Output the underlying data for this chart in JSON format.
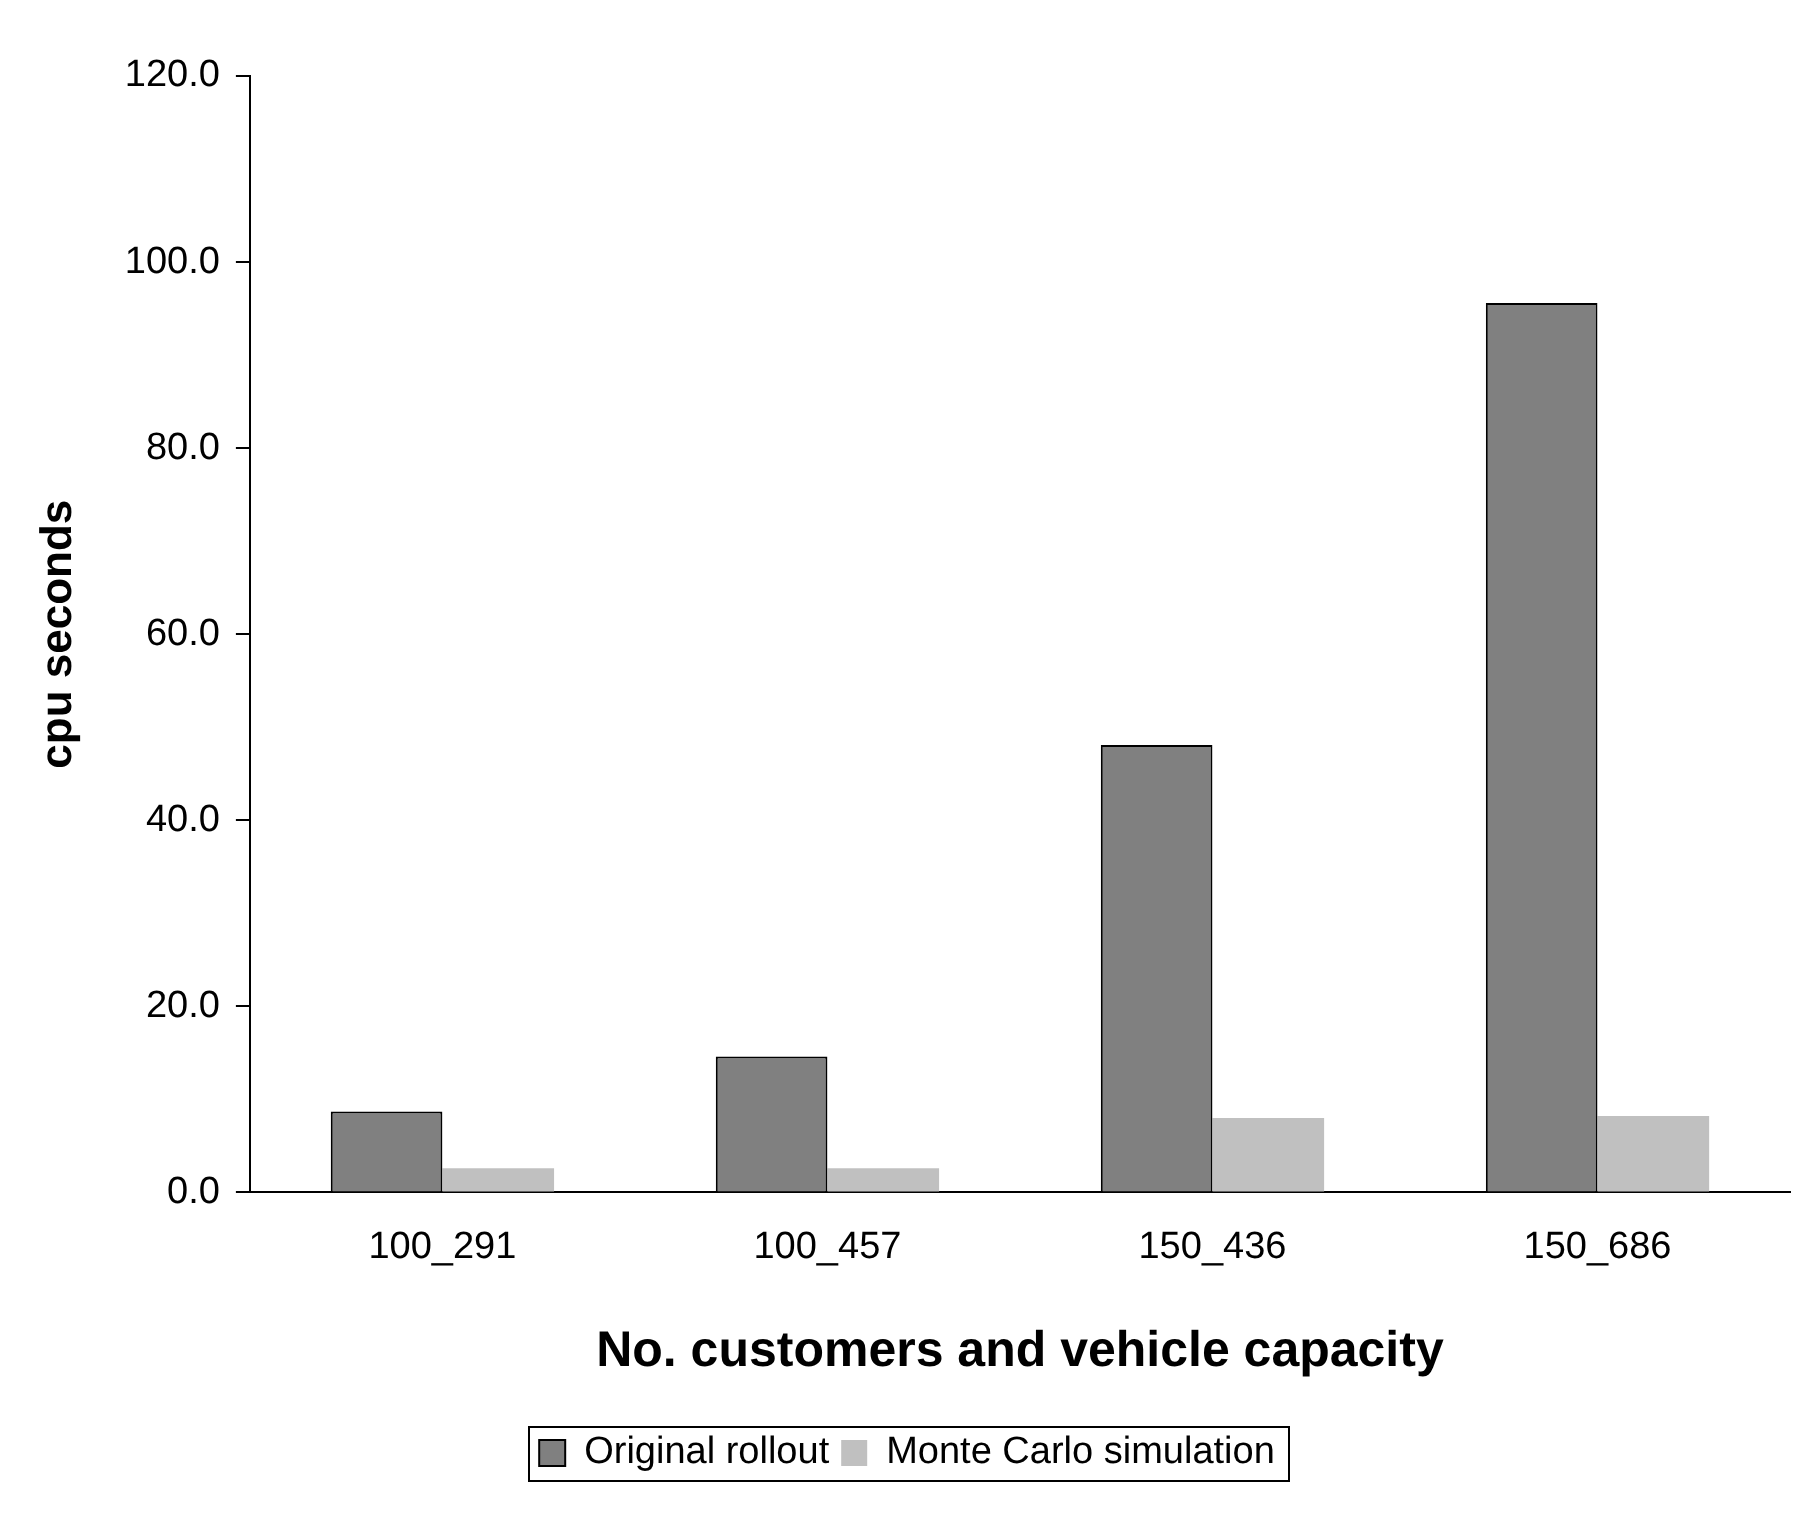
{
  "chart_data": {
    "type": "bar",
    "xlabel": "No. customers and vehicle capacity",
    "ylabel": "cpu seconds",
    "categories": [
      "100_291",
      "100_457",
      "150_436",
      "150_686"
    ],
    "series": [
      {
        "name": "Original rollout",
        "color": "#808080",
        "values": [
          8.7,
          14.6,
          48.1,
          95.6
        ]
      },
      {
        "name": "Monte Carlo simulation",
        "color": "#c0c0c0",
        "values": [
          2.6,
          2.6,
          8.0,
          8.2
        ]
      }
    ],
    "ylim": [
      0,
      120
    ],
    "yticks": [
      {
        "value": 0,
        "label": "0.0"
      },
      {
        "value": 20,
        "label": "20.0"
      },
      {
        "value": 40,
        "label": "40.0"
      },
      {
        "value": 60,
        "label": "60.0"
      },
      {
        "value": 80,
        "label": "80.0"
      },
      {
        "value": 100,
        "label": "100.0"
      },
      {
        "value": 120,
        "label": "120.0"
      }
    ],
    "grid": false,
    "legend": "bottom"
  }
}
